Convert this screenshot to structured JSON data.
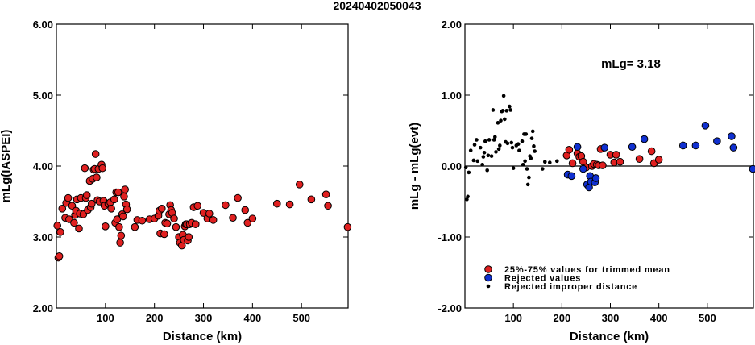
{
  "title": "20240402050043",
  "chart_data": [
    {
      "type": "scatter",
      "title": "",
      "xlabel": "Distance (km)",
      "ylabel": "mLg(IASPEI)",
      "xlim": [
        0,
        595
      ],
      "ylim": [
        2.0,
        6.0
      ],
      "x_ticks": [
        100,
        200,
        300,
        400,
        500
      ],
      "y_ticks": [
        2.0,
        3.0,
        4.0,
        5.0,
        6.0
      ],
      "x_tick_labels": [
        "100",
        "200",
        "300",
        "400",
        "500"
      ],
      "y_tick_labels": [
        "2.00",
        "3.00",
        "4.00",
        "5.00",
        "6.00"
      ],
      "grid": false,
      "series": [
        {
          "color": "#e02020",
          "points": [
            [
              2,
              3.16
            ],
            [
              4,
              2.71
            ],
            [
              6,
              2.73
            ],
            [
              8,
              3.07
            ],
            [
              12,
              3.4
            ],
            [
              18,
              3.27
            ],
            [
              20,
              3.48
            ],
            [
              24,
              3.55
            ],
            [
              26,
              3.25
            ],
            [
              32,
              3.44
            ],
            [
              36,
              3.2
            ],
            [
              38,
              3.31
            ],
            [
              40,
              3.37
            ],
            [
              42,
              3.53
            ],
            [
              46,
              3.12
            ],
            [
              48,
              3.33
            ],
            [
              50,
              3.55
            ],
            [
              55,
              3.32
            ],
            [
              58,
              3.97
            ],
            [
              60,
              3.55
            ],
            [
              62,
              3.59
            ],
            [
              64,
              3.38
            ],
            [
              68,
              3.79
            ],
            [
              70,
              3.42
            ],
            [
              72,
              3.47
            ],
            [
              74,
              3.82
            ],
            [
              76,
              3.95
            ],
            [
              78,
              3.96
            ],
            [
              80,
              4.17
            ],
            [
              82,
              3.84
            ],
            [
              84,
              3.52
            ],
            [
              86,
              3.96
            ],
            [
              88,
              3.5
            ],
            [
              92,
              4.02
            ],
            [
              94,
              3.97
            ],
            [
              96,
              3.51
            ],
            [
              98,
              3.44
            ],
            [
              100,
              3.15
            ],
            [
              106,
              3.47
            ],
            [
              110,
              3.49
            ],
            [
              112,
              3.4
            ],
            [
              118,
              3.53
            ],
            [
              120,
              3.2
            ],
            [
              122,
              3.63
            ],
            [
              124,
              3.25
            ],
            [
              126,
              3.63
            ],
            [
              128,
              3.14
            ],
            [
              130,
              2.92
            ],
            [
              132,
              3.02
            ],
            [
              134,
              3.32
            ],
            [
              136,
              3.29
            ],
            [
              138,
              3.57
            ],
            [
              140,
              3.67
            ],
            [
              142,
              3.46
            ],
            [
              144,
              3.39
            ],
            [
              160,
              3.14
            ],
            [
              165,
              3.24
            ],
            [
              175,
              3.23
            ],
            [
              190,
              3.25
            ],
            [
              200,
              3.26
            ],
            [
              208,
              3.3
            ],
            [
              210,
              3.37
            ],
            [
              212,
              3.05
            ],
            [
              215,
              3.4
            ],
            [
              220,
              3.04
            ],
            [
              222,
              3.2
            ],
            [
              226,
              3.19
            ],
            [
              230,
              3.32
            ],
            [
              232,
              3.45
            ],
            [
              234,
              3.38
            ],
            [
              236,
              3.34
            ],
            [
              240,
              3.26
            ],
            [
              244,
              3.14
            ],
            [
              250,
              3.0
            ],
            [
              252,
              2.92
            ],
            [
              256,
              2.88
            ],
            [
              258,
              3.03
            ],
            [
              260,
              2.96
            ],
            [
              262,
              3.15
            ],
            [
              264,
              3.18
            ],
            [
              266,
              3.18
            ],
            [
              268,
              2.95
            ],
            [
              270,
              3.0
            ],
            [
              272,
              3.18
            ],
            [
              276,
              3.2
            ],
            [
              280,
              3.42
            ],
            [
              284,
              3.18
            ],
            [
              288,
              3.44
            ],
            [
              300,
              3.34
            ],
            [
              308,
              3.26
            ],
            [
              312,
              3.33
            ],
            [
              320,
              3.24
            ],
            [
              345,
              3.45
            ],
            [
              360,
              3.27
            ],
            [
              370,
              3.55
            ],
            [
              385,
              3.38
            ],
            [
              390,
              3.2
            ],
            [
              400,
              3.26
            ],
            [
              450,
              3.47
            ],
            [
              476,
              3.46
            ],
            [
              496,
              3.74
            ],
            [
              520,
              3.53
            ],
            [
              550,
              3.6
            ],
            [
              554,
              3.44
            ],
            [
              594,
              3.14
            ]
          ]
        }
      ]
    },
    {
      "type": "scatter",
      "title": "",
      "xlabel": "Distance (km)",
      "ylabel": "mLg - mLg(evt)",
      "annotation": "mLg= 3.18",
      "xlim": [
        0,
        595
      ],
      "ylim": [
        -2.0,
        2.0
      ],
      "x_ticks": [
        100,
        200,
        300,
        400,
        500
      ],
      "y_ticks": [
        -2.0,
        -1.0,
        0.0,
        1.0,
        2.0
      ],
      "x_tick_labels": [
        "100",
        "200",
        "300",
        "400",
        "500"
      ],
      "y_tick_labels": [
        "-2.00",
        "-1.00",
        "0.00",
        "1.00",
        "2.00"
      ],
      "reference_line": 0.0,
      "grid": false,
      "legend": {
        "placement": "bottom-left",
        "entries": [
          "25%-75% values for trimmed mean",
          "Rejected values",
          "Rejected improper distance"
        ]
      },
      "series": [
        {
          "name": "25%-75% values for trimmed mean",
          "color": "#e02020",
          "points": [
            [
              210,
              0.15
            ],
            [
              215,
              0.23
            ],
            [
              222,
              0.04
            ],
            [
              232,
              0.18
            ],
            [
              236,
              0.13
            ],
            [
              240,
              0.14
            ],
            [
              244,
              0.06
            ],
            [
              250,
              -0.02
            ],
            [
              262,
              0.0
            ],
            [
              266,
              0.03
            ],
            [
              272,
              0.02
            ],
            [
              276,
              0.01
            ],
            [
              280,
              0.24
            ],
            [
              284,
              0.01
            ],
            [
              300,
              0.16
            ],
            [
              308,
              0.05
            ],
            [
              312,
              0.16
            ],
            [
              320,
              0.06
            ],
            [
              360,
              0.1
            ],
            [
              385,
              0.21
            ],
            [
              390,
              0.04
            ],
            [
              400,
              0.09
            ]
          ]
        },
        {
          "name": "Rejected values",
          "color": "#1030d0",
          "points": [
            [
              212,
              -0.12
            ],
            [
              220,
              -0.14
            ],
            [
              232,
              0.27
            ],
            [
              244,
              -0.04
            ],
            [
              252,
              -0.26
            ],
            [
              256,
              -0.3
            ],
            [
              258,
              -0.14
            ],
            [
              260,
              -0.22
            ],
            [
              268,
              -0.23
            ],
            [
              270,
              -0.17
            ],
            [
              288,
              0.26
            ],
            [
              345,
              0.27
            ],
            [
              370,
              0.38
            ],
            [
              450,
              0.29
            ],
            [
              476,
              0.29
            ],
            [
              496,
              0.57
            ],
            [
              520,
              0.35
            ],
            [
              550,
              0.42
            ],
            [
              554,
              0.26
            ],
            [
              594,
              -0.04
            ]
          ]
        },
        {
          "name": "Rejected improper distance",
          "color": "#000000",
          "points": [
            [
              2,
              -0.02
            ],
            [
              4,
              -0.47
            ],
            [
              6,
              -0.43
            ],
            [
              8,
              -0.09
            ],
            [
              12,
              0.22
            ],
            [
              18,
              0.08
            ],
            [
              20,
              0.3
            ],
            [
              24,
              0.37
            ],
            [
              26,
              0.07
            ],
            [
              32,
              0.26
            ],
            [
              36,
              0.02
            ],
            [
              38,
              0.13
            ],
            [
              40,
              0.19
            ],
            [
              42,
              0.35
            ],
            [
              46,
              -0.06
            ],
            [
              48,
              0.15
            ],
            [
              50,
              0.37
            ],
            [
              55,
              0.14
            ],
            [
              58,
              0.79
            ],
            [
              60,
              0.37
            ],
            [
              62,
              0.41
            ],
            [
              64,
              0.2
            ],
            [
              68,
              0.61
            ],
            [
              70,
              0.24
            ],
            [
              72,
              0.29
            ],
            [
              74,
              0.64
            ],
            [
              76,
              0.77
            ],
            [
              78,
              0.78
            ],
            [
              80,
              0.99
            ],
            [
              82,
              0.66
            ],
            [
              84,
              0.34
            ],
            [
              86,
              0.78
            ],
            [
              88,
              0.32
            ],
            [
              92,
              0.84
            ],
            [
              94,
              0.79
            ],
            [
              96,
              0.33
            ],
            [
              98,
              0.26
            ],
            [
              100,
              -0.03
            ],
            [
              106,
              0.29
            ],
            [
              110,
              0.31
            ],
            [
              112,
              0.22
            ],
            [
              118,
              0.35
            ],
            [
              120,
              0.02
            ],
            [
              122,
              0.45
            ],
            [
              124,
              0.07
            ],
            [
              126,
              0.45
            ],
            [
              128,
              -0.04
            ],
            [
              130,
              -0.26
            ],
            [
              132,
              -0.16
            ],
            [
              134,
              0.14
            ],
            [
              136,
              0.11
            ],
            [
              138,
              0.39
            ],
            [
              140,
              0.49
            ],
            [
              142,
              0.28
            ],
            [
              144,
              0.21
            ],
            [
              160,
              -0.04
            ],
            [
              165,
              0.06
            ],
            [
              175,
              0.05
            ],
            [
              190,
              0.07
            ]
          ]
        }
      ]
    }
  ]
}
